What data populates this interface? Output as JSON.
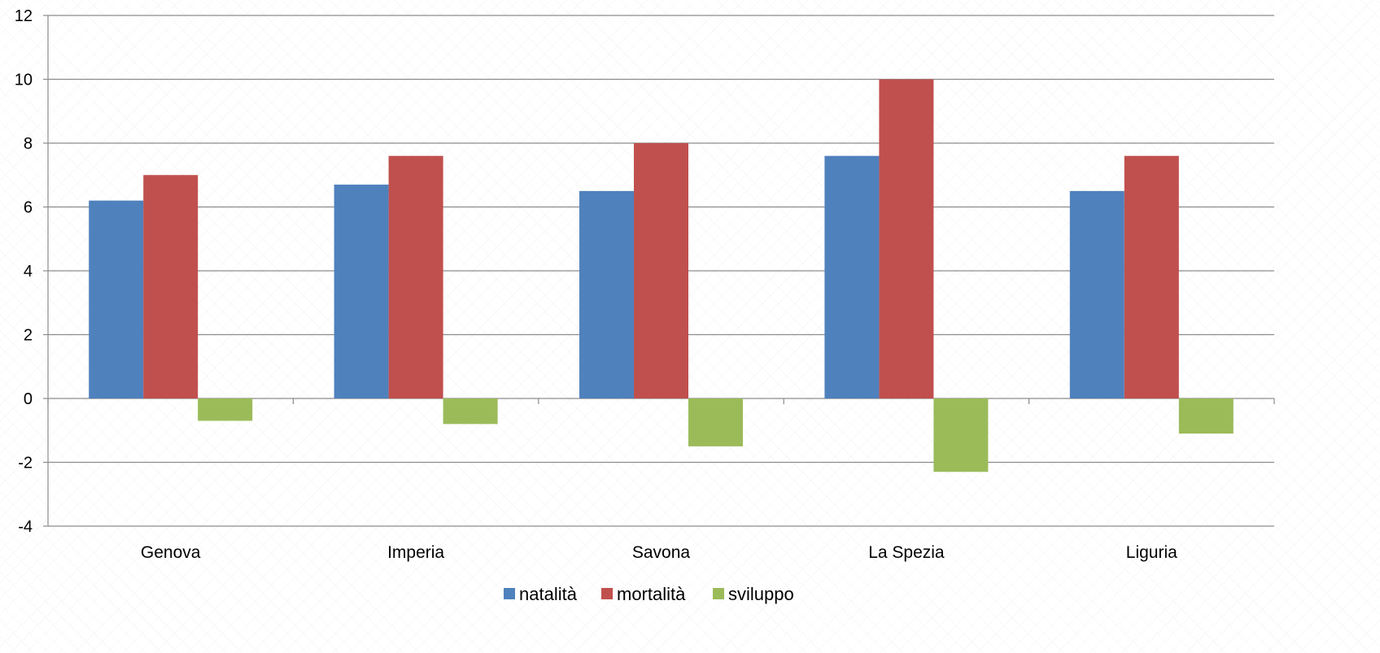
{
  "chart_data": {
    "type": "bar",
    "categories": [
      "Genova",
      "Imperia",
      "Savona",
      "La Spezia",
      "Liguria"
    ],
    "series": [
      {
        "name": "natalità",
        "color": "#4F81BD",
        "values": [
          6.2,
          6.7,
          6.5,
          7.6,
          6.5
        ]
      },
      {
        "name": "mortalità",
        "color": "#C0504D",
        "values": [
          7.0,
          7.6,
          8.0,
          10.0,
          7.6
        ]
      },
      {
        "name": "sviluppo",
        "color": "#9BBB59",
        "values": [
          -0.7,
          -0.8,
          -1.5,
          -2.3,
          -1.1
        ]
      }
    ],
    "yticks": [
      "-4",
      "-2",
      "0",
      "2",
      "4",
      "6",
      "8",
      "10",
      "12"
    ],
    "ylim": [
      -4,
      12
    ],
    "grid": true,
    "legend": "bottom"
  }
}
